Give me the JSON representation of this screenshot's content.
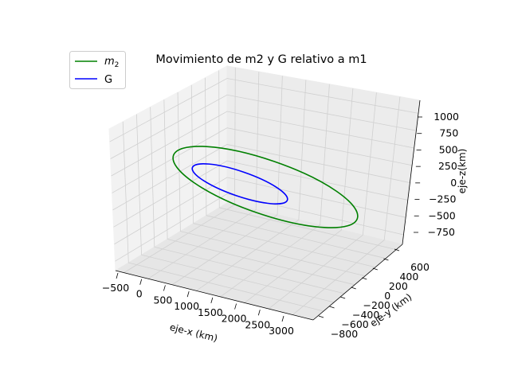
{
  "chart_data": {
    "type": "line",
    "projection": "3d",
    "title": "Movimiento de m2 y G relativo a m1",
    "xlabel": "eje-x (km)",
    "ylabel": "eje-y (km)",
    "zlabel": "eje-z(km)",
    "xticks": [
      "−500",
      "0",
      "500",
      "1000",
      "1500",
      "2000",
      "2500",
      "3000"
    ],
    "yticks": [
      "−800",
      "−600",
      "−400",
      "−200",
      "0",
      "200",
      "400",
      "600"
    ],
    "zticks": [
      "−750",
      "−500",
      "−250",
      "0",
      "250",
      "500",
      "750",
      "1000"
    ],
    "legend_position": "top-left",
    "grid": true,
    "series": [
      {
        "name": "m2",
        "legend_label": "m",
        "legend_sub": "2",
        "color": "#008000",
        "shape": "closed ellipse orbit"
      },
      {
        "name": "G",
        "legend_label": "G",
        "color": "#0000ff",
        "shape": "closed ellipse orbit"
      }
    ]
  }
}
